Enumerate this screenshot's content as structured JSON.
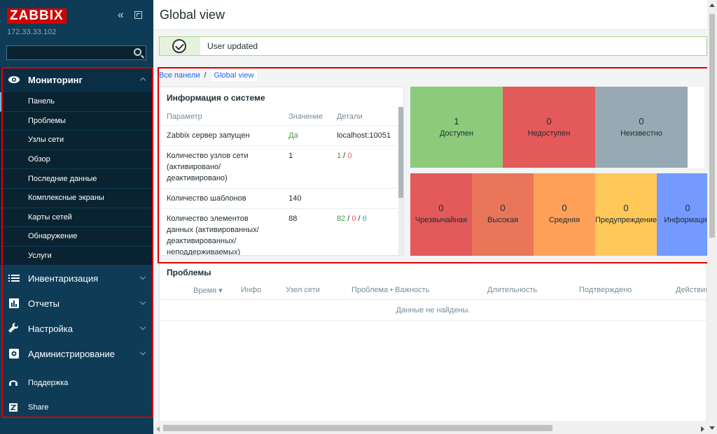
{
  "sidebar": {
    "logo": "ZABBIX",
    "server_ip": "172.33.33.102",
    "search": {
      "value": "",
      "placeholder": ""
    },
    "sections": [
      {
        "label": "Мониторинг",
        "icon": "eye-icon",
        "expanded": true
      },
      {
        "label": "Инвентаризация",
        "icon": "list-icon"
      },
      {
        "label": "Отчеты",
        "icon": "bar-chart-icon"
      },
      {
        "label": "Настройка",
        "icon": "wrench-icon"
      },
      {
        "label": "Администрирование",
        "icon": "gear-icon"
      }
    ],
    "monitoring_items": [
      "Панель",
      "Проблемы",
      "Узлы сети",
      "Обзор",
      "Последние данные",
      "Комплексные экраны",
      "Карты сетей",
      "Обнаружение",
      "Услуги"
    ],
    "footer": [
      {
        "label": "Поддержка",
        "icon": "headset-icon"
      },
      {
        "label": "Share",
        "icon": "share-icon"
      }
    ]
  },
  "header": {
    "title": "Global view"
  },
  "message": {
    "text": "User updated",
    "icon": "check-circle-icon",
    "color": "#a8d18c"
  },
  "breadcrumbs": {
    "root": "Все панели",
    "separator": "/",
    "current": "Global view"
  },
  "system_info": {
    "title": "Информация о системе",
    "columns": [
      "Параметр",
      "Значение",
      "Детали"
    ],
    "rows": [
      {
        "param": "Zabbix сервер запущен",
        "value": "Да",
        "details": "localhost:10051"
      },
      {
        "param": "Количество узлов сети (активировано/деактивировано)",
        "value": "1",
        "d1": "1",
        "d2": "0"
      },
      {
        "param": "Количество шаблонов",
        "value": "140"
      },
      {
        "param": "Количество элементов данных (активированных/деактивированных/неподдерживаемых)",
        "value": "88",
        "d1": "82",
        "d2": "0",
        "d3": "6"
      }
    ]
  },
  "host_availability": [
    {
      "count": "1",
      "label": "Доступен",
      "color": "#8ccb7c"
    },
    {
      "count": "0",
      "label": "Недоступен",
      "color": "#e45959"
    },
    {
      "count": "0",
      "label": "Неизвестно",
      "color": "#97aab3"
    }
  ],
  "severity": [
    {
      "count": "0",
      "label": "Чрезвычайная",
      "color": "#e45959"
    },
    {
      "count": "0",
      "label": "Высокая",
      "color": "#e97659"
    },
    {
      "count": "0",
      "label": "Средняя",
      "color": "#ffa059"
    },
    {
      "count": "0",
      "label": "Предупреждение",
      "color": "#ffc859"
    },
    {
      "count": "0",
      "label": "Информация",
      "color": "#7499ff"
    }
  ],
  "problems": {
    "title": "Проблемы",
    "columns": [
      "Время ▾",
      "Инфо",
      "Узел сети",
      "Проблема • Важность",
      "Длительность",
      "Подтверждено",
      "Действия"
    ],
    "empty": "Данные не найдены."
  },
  "highlight_color": "#e00000"
}
